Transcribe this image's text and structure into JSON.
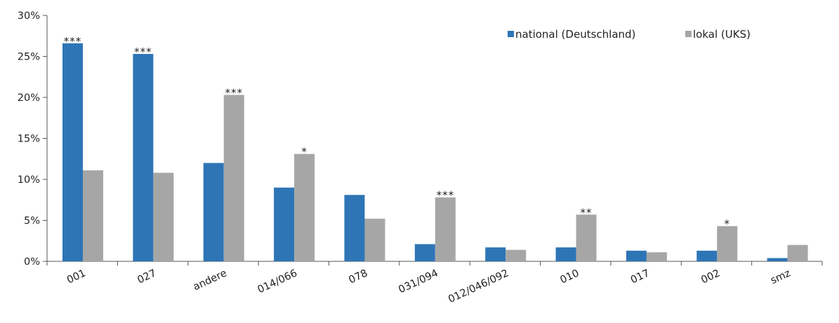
{
  "chart_data": {
    "type": "bar",
    "title": "",
    "xlabel": "",
    "ylabel": "",
    "ylim": [
      0,
      30
    ],
    "yticks": [
      "0%",
      "5%",
      "10%",
      "15%",
      "20%",
      "25%",
      "30%"
    ],
    "yticks_values": [
      0,
      5,
      10,
      15,
      20,
      25,
      30
    ],
    "grid": false,
    "legend_position": "top-right",
    "categories": [
      "001",
      "027",
      "andere",
      "014/066",
      "078",
      "031/094",
      "012/046/092",
      "010",
      "017",
      "002",
      "smz"
    ],
    "series": [
      {
        "name": "national (Deutschland)",
        "color": "#2e75b6",
        "values": [
          26.6,
          25.3,
          12.0,
          9.0,
          8.1,
          2.1,
          1.7,
          1.7,
          1.3,
          1.3,
          0.4
        ]
      },
      {
        "name": "lokal (UKS)",
        "color": "#a6a6a6",
        "values": [
          11.1,
          10.8,
          20.3,
          13.1,
          5.2,
          7.8,
          1.4,
          5.7,
          1.1,
          4.3,
          2.0
        ]
      }
    ],
    "annotations": [
      {
        "category": "001",
        "series": 0,
        "text": "***"
      },
      {
        "category": "027",
        "series": 0,
        "text": "***"
      },
      {
        "category": "andere",
        "series": 1,
        "text": "***"
      },
      {
        "category": "014/066",
        "series": 1,
        "text": "*"
      },
      {
        "category": "031/094",
        "series": 1,
        "text": "***"
      },
      {
        "category": "010",
        "series": 1,
        "text": "**"
      },
      {
        "category": "002",
        "series": 1,
        "text": "*"
      }
    ]
  }
}
